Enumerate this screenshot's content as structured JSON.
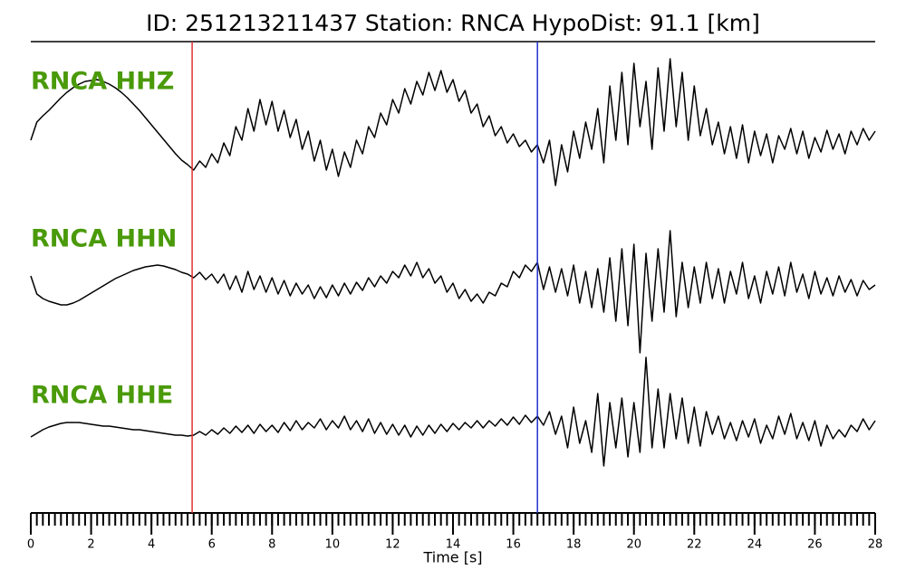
{
  "chart_data": {
    "type": "seismogram",
    "title": "ID: 251213211437   Station: RNCA   HypoDist:    91.1 [km]",
    "xlabel": "Time [s]",
    "xlim": [
      0,
      28
    ],
    "xticks": [
      0,
      2,
      4,
      6,
      8,
      10,
      12,
      14,
      16,
      18,
      20,
      22,
      24,
      26,
      28
    ],
    "xminorticks": [
      0,
      0.2,
      0.4,
      0.6,
      0.8,
      1,
      1.2,
      1.4,
      1.6,
      1.8,
      2,
      2.2,
      2.4,
      2.6,
      2.8,
      3,
      3.2,
      3.4,
      3.6,
      3.8,
      4,
      4.2,
      4.4,
      4.6,
      4.8,
      5,
      5.2,
      5.4,
      5.6,
      5.8,
      6,
      6.2,
      6.4,
      6.6,
      6.8,
      7,
      7.2,
      7.4,
      7.6,
      7.8,
      8,
      8.2,
      8.4,
      8.6,
      8.8,
      9,
      9.2,
      9.4,
      9.6,
      9.8,
      10,
      10.2,
      10.4,
      10.6,
      10.8,
      11,
      11.2,
      11.4,
      11.6,
      11.8,
      12,
      12.2,
      12.4,
      12.6,
      12.8,
      13,
      13.2,
      13.4,
      13.6,
      13.8,
      14,
      14.2,
      14.4,
      14.6,
      14.8,
      15,
      15.2,
      15.4,
      15.6,
      15.8,
      16,
      16.2,
      16.4,
      16.6,
      16.8,
      17,
      17.2,
      17.4,
      17.6,
      17.8,
      18,
      18.2,
      18.4,
      18.6,
      18.8,
      19,
      19.2,
      19.4,
      19.6,
      19.8,
      20,
      20.2,
      20.4,
      20.6,
      20.8,
      21,
      21.2,
      21.4,
      21.6,
      21.8,
      22,
      22.2,
      22.4,
      22.6,
      22.8,
      23,
      23.2,
      23.4,
      23.6,
      23.8,
      24,
      24.2,
      24.4,
      24.6,
      24.8,
      25,
      25.2,
      25.4,
      25.6,
      25.8,
      26,
      26.2,
      26.4,
      26.6,
      26.8,
      27,
      27.2,
      27.4,
      27.6,
      27.8,
      28
    ],
    "ylim": [
      -90,
      90
    ],
    "x": [
      0,
      0.2,
      0.4,
      0.6,
      0.8,
      1,
      1.2,
      1.4,
      1.6,
      1.8,
      2,
      2.2,
      2.4,
      2.6,
      2.8,
      3,
      3.2,
      3.4,
      3.6,
      3.8,
      4,
      4.2,
      4.4,
      4.6,
      4.8,
      5,
      5.2,
      5.4,
      5.6,
      5.8,
      6,
      6.2,
      6.4,
      6.6,
      6.8,
      7,
      7.2,
      7.4,
      7.6,
      7.8,
      8,
      8.2,
      8.4,
      8.6,
      8.8,
      9,
      9.2,
      9.4,
      9.6,
      9.8,
      10,
      10.2,
      10.4,
      10.6,
      10.8,
      11,
      11.2,
      11.4,
      11.6,
      11.8,
      12,
      12.2,
      12.4,
      12.6,
      12.8,
      13,
      13.2,
      13.4,
      13.6,
      13.8,
      14,
      14.2,
      14.4,
      14.6,
      14.8,
      15,
      15.2,
      15.4,
      15.6,
      15.8,
      16,
      16.2,
      16.4,
      16.6,
      16.8,
      17,
      17.2,
      17.4,
      17.6,
      17.8,
      18,
      18.2,
      18.4,
      18.6,
      18.8,
      19,
      19.2,
      19.4,
      19.6,
      19.8,
      20,
      20.2,
      20.4,
      20.6,
      20.8,
      21,
      21.2,
      21.4,
      21.6,
      21.8,
      22,
      22.2,
      22.4,
      22.6,
      22.8,
      23,
      23.2,
      23.4,
      23.6,
      23.8,
      24,
      24.2,
      24.4,
      24.6,
      24.8,
      25,
      25.2,
      25.4,
      25.6,
      25.8,
      26,
      26.2,
      26.4,
      26.6,
      26.8,
      27,
      27.2,
      27.4,
      27.6,
      27.8,
      28
    ],
    "label_color": "#4a9a0a",
    "series": [
      {
        "name": "RNCA HHZ",
        "color": "#000000",
        "values": [
          -5,
          15,
          22,
          28,
          35,
          42,
          48,
          53,
          57,
          60,
          61,
          62,
          60,
          57,
          53,
          48,
          42,
          35,
          28,
          20,
          12,
          4,
          -4,
          -12,
          -20,
          -27,
          -32,
          -38,
          -28,
          -35,
          -20,
          -30,
          -8,
          -22,
          10,
          -5,
          30,
          5,
          40,
          12,
          38,
          5,
          28,
          -2,
          18,
          -15,
          5,
          -28,
          -5,
          -38,
          -15,
          -45,
          -18,
          -35,
          -5,
          -20,
          10,
          -2,
          25,
          12,
          40,
          25,
          52,
          35,
          60,
          45,
          70,
          50,
          72,
          48,
          62,
          38,
          50,
          25,
          35,
          10,
          22,
          0,
          10,
          -8,
          2,
          -12,
          -5,
          -18,
          -10,
          -30,
          -5,
          -55,
          -10,
          -40,
          5,
          -25,
          15,
          -15,
          30,
          -30,
          55,
          -5,
          70,
          -10,
          80,
          10,
          60,
          -15,
          75,
          5,
          85,
          10,
          70,
          -5,
          55,
          0,
          30,
          -10,
          15,
          -20,
          10,
          -25,
          12,
          -30,
          5,
          -22,
          2,
          -30,
          0,
          -15,
          8,
          -20,
          5,
          -25,
          -2,
          -18,
          6,
          -15,
          2,
          -20,
          5,
          -10,
          8,
          -5,
          5
        ]
      },
      {
        "name": "RNCA HHN",
        "color": "#000000",
        "values": [
          10,
          -10,
          -15,
          -18,
          -20,
          -22,
          -22,
          -20,
          -17,
          -13,
          -9,
          -5,
          -1,
          3,
          7,
          10,
          13,
          16,
          18,
          20,
          21,
          22,
          21,
          19,
          17,
          14,
          12,
          8,
          14,
          6,
          12,
          2,
          12,
          -5,
          10,
          -8,
          15,
          -5,
          10,
          -8,
          8,
          -10,
          5,
          -12,
          2,
          -10,
          0,
          -15,
          -2,
          -14,
          0,
          -12,
          2,
          -10,
          3,
          -6,
          8,
          -2,
          10,
          2,
          15,
          8,
          22,
          10,
          25,
          8,
          18,
          2,
          10,
          -8,
          2,
          -15,
          -5,
          -18,
          -10,
          -20,
          -8,
          -12,
          2,
          -2,
          15,
          8,
          22,
          15,
          25,
          -5,
          20,
          -8,
          18,
          -12,
          22,
          -20,
          15,
          -25,
          18,
          -30,
          30,
          -40,
          40,
          -45,
          45,
          -75,
          35,
          -40,
          40,
          -30,
          60,
          -35,
          25,
          -25,
          20,
          -20,
          25,
          -15,
          18,
          -20,
          15,
          -10,
          25,
          -15,
          10,
          -20,
          15,
          -10,
          20,
          -12,
          25,
          -8,
          12,
          -15,
          15,
          -10,
          8,
          -12,
          10,
          -8,
          6,
          -12,
          5,
          -5,
          0
        ]
      },
      {
        "name": "RNCA HHE",
        "color": "#000000",
        "values": [
          -8,
          -4,
          0,
          3,
          5,
          7,
          8,
          8,
          8,
          7,
          6,
          5,
          4,
          4,
          3,
          2,
          1,
          0,
          0,
          -1,
          -2,
          -3,
          -4,
          -5,
          -6,
          -6,
          -7,
          -6,
          -2,
          -6,
          0,
          -5,
          2,
          -4,
          4,
          -3,
          5,
          -4,
          6,
          -2,
          5,
          -3,
          8,
          -1,
          10,
          0,
          8,
          2,
          12,
          0,
          10,
          2,
          15,
          0,
          10,
          -2,
          12,
          -4,
          8,
          -5,
          6,
          -6,
          5,
          -8,
          4,
          -6,
          5,
          -4,
          6,
          -2,
          7,
          0,
          8,
          2,
          10,
          2,
          10,
          4,
          12,
          5,
          14,
          6,
          16,
          8,
          15,
          5,
          20,
          -5,
          15,
          -20,
          25,
          -15,
          10,
          -25,
          40,
          -40,
          30,
          -20,
          35,
          -30,
          30,
          -25,
          80,
          -20,
          45,
          -20,
          40,
          -10,
          35,
          -15,
          25,
          -18,
          20,
          -5,
          15,
          -10,
          8,
          -12,
          10,
          -8,
          12,
          -15,
          5,
          -10,
          15,
          -5,
          18,
          -10,
          8,
          -12,
          10,
          -18,
          5,
          -10,
          0,
          -8,
          5,
          -2,
          12,
          0,
          10
        ]
      }
    ],
    "vlines": [
      {
        "value": 5.35,
        "color": "#e03030"
      },
      {
        "value": 16.8,
        "color": "#2030d0"
      }
    ]
  }
}
